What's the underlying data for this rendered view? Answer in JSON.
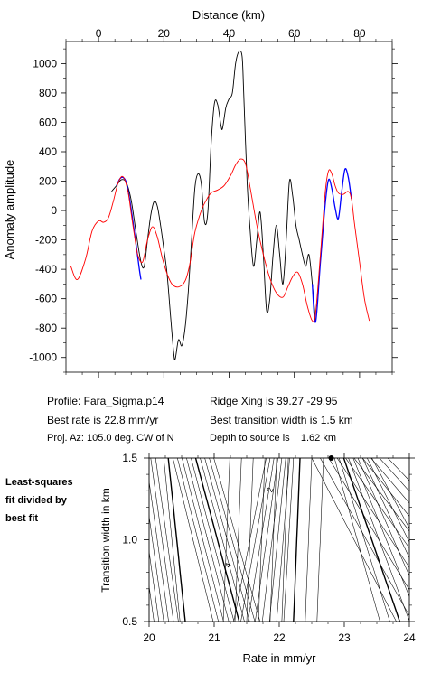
{
  "info": {
    "profile": "Profile: Fara_Sigma.p14",
    "ridge_xing": "Ridge Xing is 39.27 -29.95",
    "best_rate": "Best rate is 22.8 mm/yr",
    "best_width": "Best transition width is 1.5 km",
    "proj_az": "Proj. Az: 105.0 deg. CW of N",
    "depth": "Depth to source is    1.62 km"
  },
  "side_label": [
    "Least-squares",
    "fit divided by",
    "best fit"
  ],
  "chart_data": [
    {
      "type": "line",
      "xlabel": "Distance (km)",
      "ylabel": "Anomaly amplitude",
      "xlim": [
        -10,
        90
      ],
      "ylim": [
        -1100,
        1150
      ],
      "xticks": [
        0,
        20,
        40,
        60,
        80
      ],
      "yticks": [
        -1000,
        -800,
        -600,
        -400,
        -200,
        0,
        200,
        400,
        600,
        800,
        1000
      ],
      "series": [
        {
          "color": "#000000",
          "points": [
            [
              4,
              130
            ],
            [
              5.5,
              170
            ],
            [
              7,
              210
            ],
            [
              8.5,
              190
            ],
            [
              10,
              70
            ],
            [
              11.5,
              -150
            ],
            [
              13,
              -350
            ],
            [
              14,
              -380
            ],
            [
              15,
              -200
            ],
            [
              16,
              -30
            ],
            [
              17,
              60
            ],
            [
              18,
              30
            ],
            [
              19,
              -100
            ],
            [
              20,
              -260
            ],
            [
              21,
              -430
            ],
            [
              22,
              -700
            ],
            [
              23,
              -960
            ],
            [
              23.5,
              -1010
            ],
            [
              24.5,
              -880
            ],
            [
              25.5,
              -920
            ],
            [
              26.5,
              -800
            ],
            [
              27.5,
              -550
            ],
            [
              28.5,
              -200
            ],
            [
              29.5,
              150
            ],
            [
              30.5,
              250
            ],
            [
              31.5,
              180
            ],
            [
              32.5,
              -80
            ],
            [
              33.5,
              -10
            ],
            [
              34.5,
              450
            ],
            [
              35.5,
              730
            ],
            [
              36.5,
              720
            ],
            [
              37.5,
              580
            ],
            [
              38,
              560
            ],
            [
              39,
              700
            ],
            [
              40,
              760
            ],
            [
              41,
              800
            ],
            [
              42,
              1000
            ],
            [
              43,
              1080
            ],
            [
              44,
              1050
            ],
            [
              44.5,
              800
            ],
            [
              45.5,
              200
            ],
            [
              46.5,
              -150
            ],
            [
              47.5,
              -380
            ],
            [
              48.5,
              -200
            ],
            [
              49.5,
              -10
            ],
            [
              50.5,
              -300
            ],
            [
              51.5,
              -680
            ],
            [
              52.5,
              -600
            ],
            [
              53.5,
              -300
            ],
            [
              54.5,
              -100
            ],
            [
              55.5,
              -300
            ],
            [
              56.5,
              -500
            ],
            [
              57.5,
              -200
            ],
            [
              58.5,
              200
            ],
            [
              59.5,
              100
            ],
            [
              60.5,
              -100
            ],
            [
              61.5,
              -200
            ],
            [
              62.5,
              -300
            ],
            [
              63.5,
              -380
            ],
            [
              64.5,
              -300
            ],
            [
              65.5,
              -500
            ],
            [
              66.5,
              -760
            ]
          ]
        },
        {
          "color": "#0000ff",
          "points": [
            [
              5.5,
              170
            ],
            [
              6.5,
              215
            ],
            [
              7.5,
              225
            ],
            [
              8.5,
              190
            ],
            [
              9.5,
              80
            ],
            [
              10.5,
              -70
            ],
            [
              11.5,
              -230
            ],
            [
              12.5,
              -400
            ],
            [
              13,
              -470
            ],
            [
              65.5,
              -500
            ],
            [
              66.5,
              -760
            ],
            [
              68,
              -350
            ],
            [
              69.5,
              50
            ],
            [
              70.5,
              210
            ],
            [
              71.5,
              150
            ],
            [
              72.5,
              20
            ],
            [
              73.5,
              -55
            ],
            [
              74.5,
              120
            ],
            [
              75.5,
              280
            ],
            [
              76.5,
              230
            ],
            [
              77.5,
              80
            ]
          ]
        },
        {
          "color": "#ff0000",
          "points": [
            [
              -8.5,
              -380
            ],
            [
              -6.5,
              -470
            ],
            [
              -4,
              -330
            ],
            [
              -2,
              -140
            ],
            [
              0,
              -70
            ],
            [
              1.5,
              -80
            ],
            [
              3,
              -50
            ],
            [
              4.5,
              60
            ],
            [
              6,
              190
            ],
            [
              7.5,
              230
            ],
            [
              9,
              130
            ],
            [
              10,
              -20
            ],
            [
              11,
              -170
            ],
            [
              12,
              -300
            ],
            [
              13.5,
              -350
            ],
            [
              15,
              -200
            ],
            [
              16.5,
              -110
            ],
            [
              18,
              -180
            ],
            [
              19.5,
              -320
            ],
            [
              21,
              -430
            ],
            [
              22.5,
              -500
            ],
            [
              24.5,
              -520
            ],
            [
              26.5,
              -480
            ],
            [
              28,
              -360
            ],
            [
              29.5,
              -150
            ],
            [
              31.5,
              0
            ],
            [
              33,
              70
            ],
            [
              34.5,
              120
            ],
            [
              36.5,
              140
            ],
            [
              38.5,
              170
            ],
            [
              40.5,
              240
            ],
            [
              42,
              310
            ],
            [
              43.5,
              350
            ],
            [
              45,
              320
            ],
            [
              46.5,
              150
            ],
            [
              48.5,
              -100
            ],
            [
              50.5,
              -300
            ],
            [
              52.5,
              -460
            ],
            [
              54.5,
              -560
            ],
            [
              56.5,
              -590
            ],
            [
              58,
              -520
            ],
            [
              59.5,
              -450
            ],
            [
              61,
              -420
            ],
            [
              62.5,
              -500
            ],
            [
              64,
              -650
            ],
            [
              65.5,
              -750
            ],
            [
              66.5,
              -700
            ],
            [
              68,
              -300
            ],
            [
              69.5,
              130
            ],
            [
              70.5,
              270
            ],
            [
              71.5,
              250
            ],
            [
              72.5,
              170
            ],
            [
              73.5,
              120
            ],
            [
              75,
              110
            ],
            [
              76.5,
              130
            ],
            [
              77.5,
              80
            ],
            [
              78.5,
              -100
            ],
            [
              80,
              -350
            ],
            [
              81.5,
              -600
            ],
            [
              83,
              -750
            ]
          ]
        }
      ]
    },
    {
      "type": "contour",
      "xlabel": "Rate in mm/yr",
      "ylabel": "Transition width in km",
      "xlim": [
        20,
        24
      ],
      "ylim": [
        0.5,
        1.5
      ],
      "xticks": [
        20,
        21,
        22,
        23,
        24
      ],
      "yticks": [
        0.5,
        1.0,
        1.5
      ],
      "contour_labels": [
        {
          "text": "2",
          "x": 21.9,
          "y": 1.3
        },
        {
          "text": "4",
          "x": 21.25,
          "y": 0.84
        }
      ],
      "best_fit": {
        "rate": 22.8,
        "width": 1.5
      }
    }
  ]
}
